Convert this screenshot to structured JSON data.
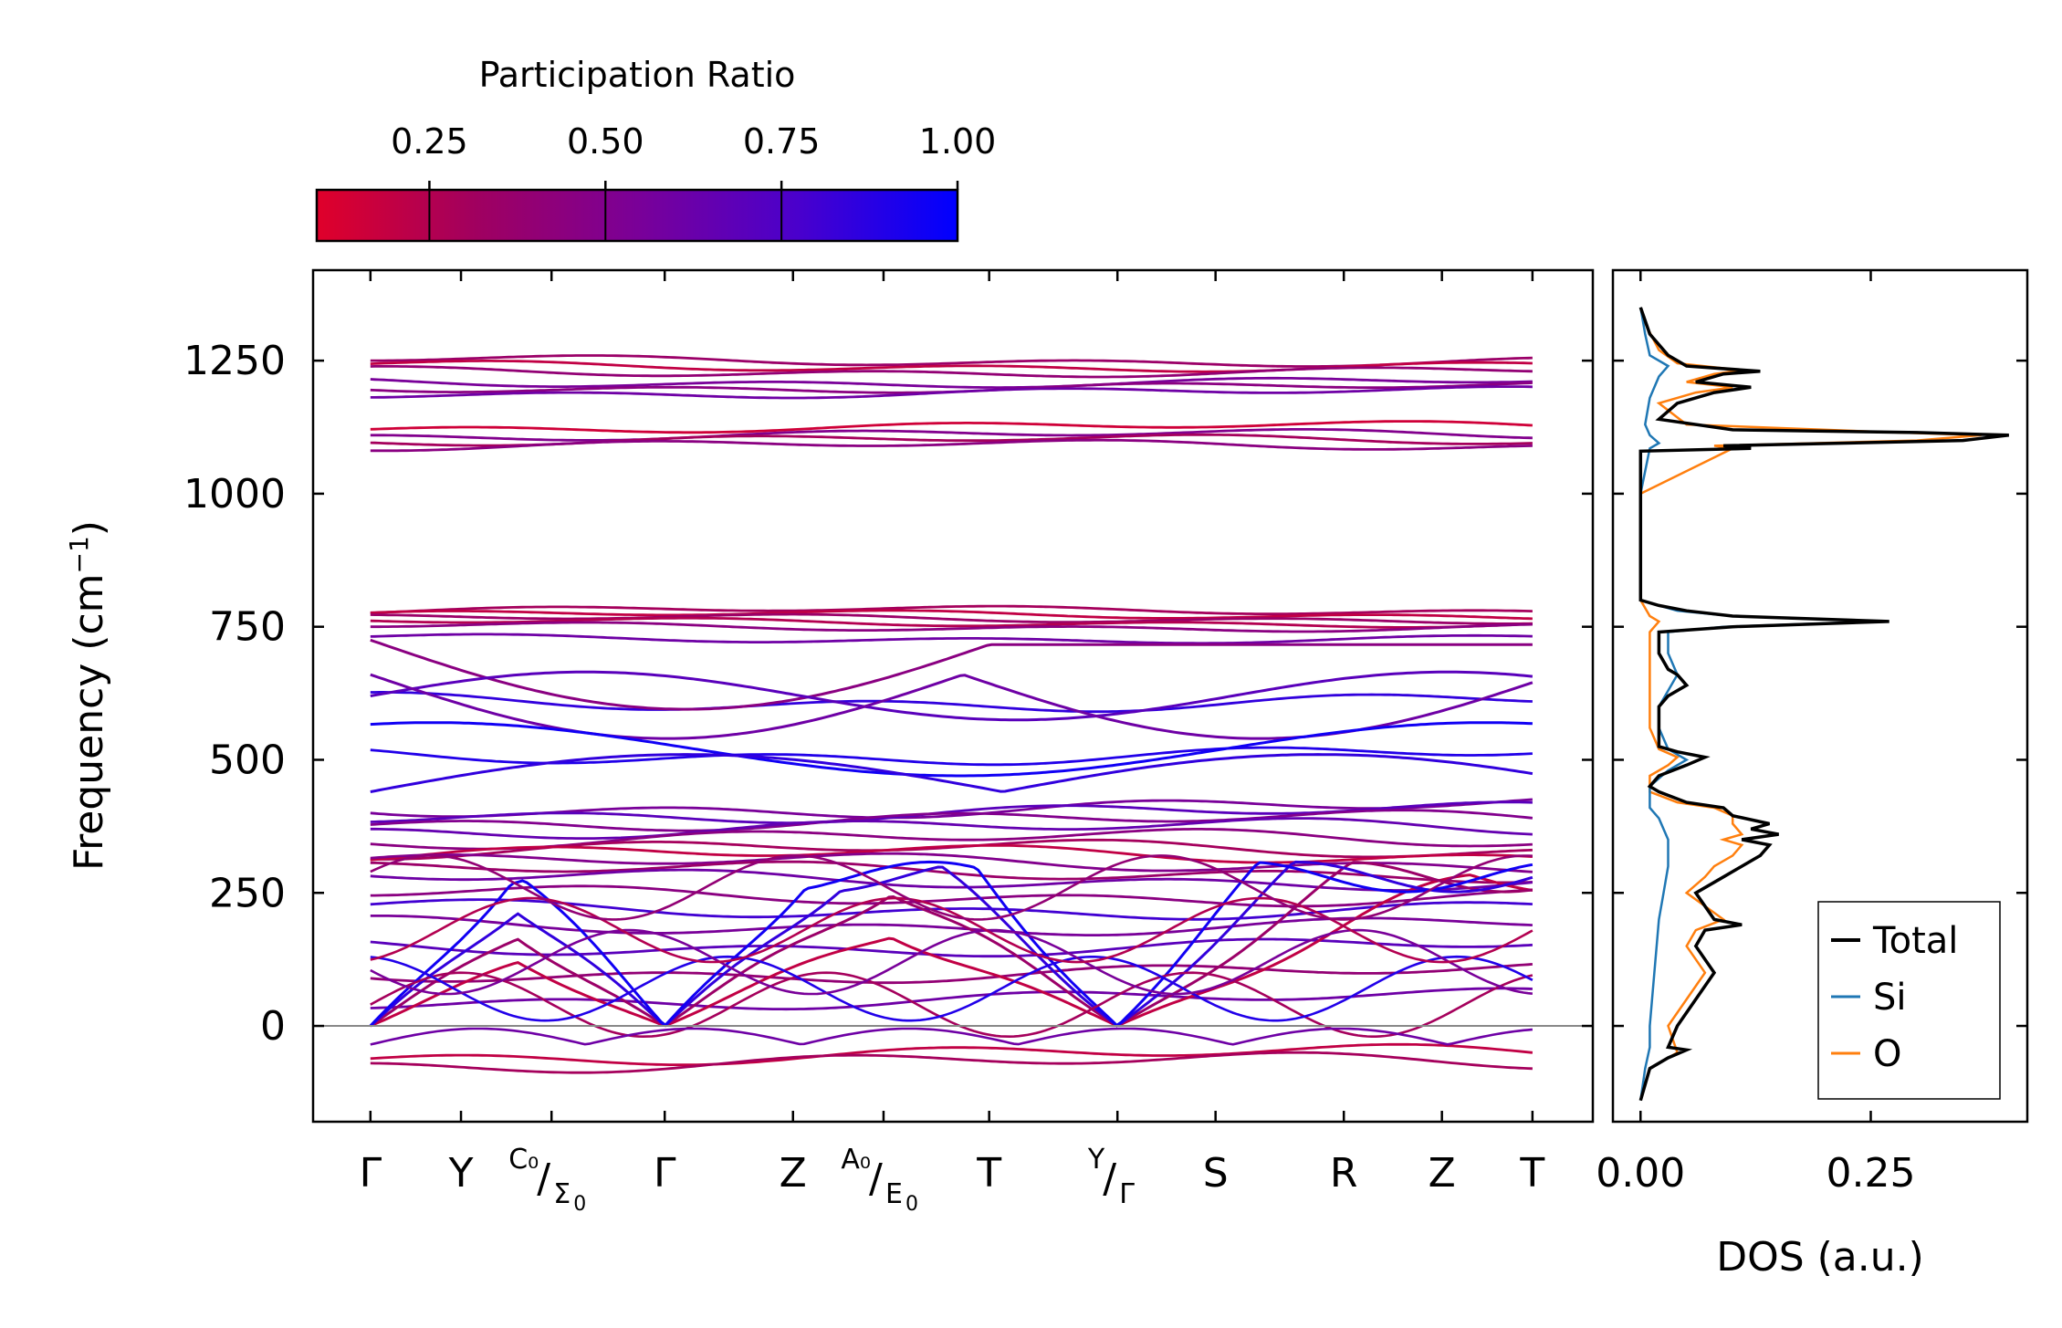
{
  "chart_data": [
    {
      "type": "line",
      "title": "",
      "xlabel": "",
      "ylabel": "Frequency (cm⁻¹)",
      "ylabel_text": "Frequency (cm",
      "ylabel_sup": "−1",
      "ylabel_close": ")",
      "ylim": [
        -180,
        1420
      ],
      "yticks": [
        0,
        250,
        500,
        750,
        1000,
        1250
      ],
      "ytick_labels": [
        "0",
        "250",
        "500",
        "750",
        "1000",
        "1250"
      ],
      "k_path_labels": [
        {
          "main": "Γ"
        },
        {
          "main": "Y"
        },
        {
          "sup": "C₀",
          "sub": "Σ",
          "sub_idx": "0"
        },
        {
          "main": "Γ"
        },
        {
          "main": "Z"
        },
        {
          "sup": "A₀",
          "sub": "E",
          "sub_idx": "0"
        },
        {
          "main": "T"
        },
        {
          "sup": "Y",
          "sub": "Γ",
          "sub_idx": ""
        },
        {
          "main": "S"
        },
        {
          "main": "R"
        },
        {
          "main": "Z"
        },
        {
          "main": "T"
        }
      ],
      "k_positions": [
        0,
        0.6,
        1.2,
        1.95,
        2.8,
        3.4,
        4.1,
        4.95,
        5.6,
        6.45,
        7.1,
        7.7
      ],
      "k_range": [
        -0.38,
        8.1
      ],
      "colorbar": {
        "label": "Participation Ratio",
        "range": [
          0.09,
          1.0
        ],
        "ticks": [
          0.25,
          0.5,
          0.75,
          1.0
        ],
        "tick_labels": [
          "0.25",
          "0.50",
          "0.75",
          "1.00"
        ],
        "colors": [
          "#e0002a",
          "#a00060",
          "#7a0098",
          "#4a00cc",
          "#0000ff"
        ]
      },
      "flat_bands": [
        {
          "f": 1250,
          "pr": 0.35
        },
        {
          "f": 1240,
          "pr": 0.2
        },
        {
          "f": 1230,
          "pr": 0.4
        },
        {
          "f": 1210,
          "pr": 0.55
        },
        {
          "f": 1200,
          "pr": 0.45
        },
        {
          "f": 1190,
          "pr": 0.6
        },
        {
          "f": 1125,
          "pr": 0.15
        },
        {
          "f": 1110,
          "pr": 0.5
        },
        {
          "f": 1100,
          "pr": 0.3
        },
        {
          "f": 1090,
          "pr": 0.45
        },
        {
          "f": 780,
          "pr": 0.3
        },
        {
          "f": 772,
          "pr": 0.2
        },
        {
          "f": 765,
          "pr": 0.35
        },
        {
          "f": 758,
          "pr": 0.25
        },
        {
          "f": 750,
          "pr": 0.45
        },
        {
          "f": 728,
          "pr": 0.6
        },
        {
          "f": 610,
          "pr": 0.85
        },
        {
          "f": 510,
          "pr": 0.9
        },
        {
          "f": 410,
          "pr": 0.55
        },
        {
          "f": 400,
          "pr": 0.7
        },
        {
          "f": 385,
          "pr": 0.5
        },
        {
          "f": 370,
          "pr": 0.65
        },
        {
          "f": 350,
          "pr": 0.45
        },
        {
          "f": 330,
          "pr": 0.3
        },
        {
          "f": 320,
          "pr": 0.2
        },
        {
          "f": 305,
          "pr": 0.5
        },
        {
          "f": 290,
          "pr": 0.35
        },
        {
          "f": 275,
          "pr": 0.6
        },
        {
          "f": 245,
          "pr": 0.45
        },
        {
          "f": 220,
          "pr": 0.8
        },
        {
          "f": 190,
          "pr": 0.55
        },
        {
          "f": 150,
          "pr": 0.7
        },
        {
          "f": 100,
          "pr": 0.4
        },
        {
          "f": 50,
          "pr": 0.6
        },
        {
          "f": -55,
          "pr": 0.2
        },
        {
          "f": -70,
          "pr": 0.3
        }
      ],
      "reference_line": {
        "y": 0,
        "color": "#888888"
      }
    },
    {
      "type": "line",
      "title": "",
      "xlabel": "DOS (a.u.)",
      "ylabel": "",
      "xlim": [
        -0.03,
        0.42
      ],
      "xticks": [
        0.0,
        0.25
      ],
      "xtick_labels": [
        "0.00",
        "0.25"
      ],
      "ylim": [
        -180,
        1420
      ],
      "legend": {
        "placement": "bottom-right",
        "entries": [
          "Total",
          "Si",
          "O"
        ]
      },
      "series": [
        {
          "name": "Total",
          "color": "#000000",
          "freq": [
            -140,
            -80,
            -60,
            -45,
            -40,
            0,
            50,
            100,
            150,
            180,
            190,
            200,
            250,
            280,
            300,
            320,
            340,
            350,
            360,
            370,
            380,
            395,
            410,
            420,
            440,
            450,
            470,
            490,
            505,
            515,
            525,
            540,
            560,
            600,
            620,
            640,
            660,
            670,
            700,
            740,
            750,
            760,
            770,
            780,
            790,
            800,
            900,
            1000,
            1080,
            1085,
            1090,
            1100,
            1110,
            1115,
            1120,
            1140,
            1170,
            1190,
            1200,
            1210,
            1225,
            1230,
            1240,
            1260,
            1300,
            1350
          ],
          "dos": [
            0.0,
            0.01,
            0.03,
            0.05,
            0.03,
            0.04,
            0.06,
            0.08,
            0.06,
            0.07,
            0.11,
            0.08,
            0.06,
            0.09,
            0.11,
            0.13,
            0.14,
            0.11,
            0.15,
            0.12,
            0.14,
            0.1,
            0.09,
            0.05,
            0.02,
            0.01,
            0.02,
            0.05,
            0.07,
            0.04,
            0.02,
            0.02,
            0.02,
            0.02,
            0.03,
            0.05,
            0.04,
            0.03,
            0.02,
            0.02,
            0.1,
            0.27,
            0.1,
            0.05,
            0.02,
            0.0,
            0.0,
            0.0,
            0.0,
            0.12,
            0.09,
            0.35,
            0.4,
            0.3,
            0.1,
            0.02,
            0.04,
            0.08,
            0.12,
            0.06,
            0.09,
            0.13,
            0.05,
            0.03,
            0.01,
            0.0
          ]
        },
        {
          "name": "Si",
          "color": "#1f77b4",
          "freq": [
            -140,
            -80,
            -40,
            0,
            100,
            200,
            250,
            300,
            350,
            390,
            410,
            420,
            450,
            480,
            500,
            520,
            560,
            600,
            660,
            700,
            740,
            750,
            760,
            770,
            780,
            790,
            800,
            900,
            1000,
            1085,
            1095,
            1110,
            1130,
            1180,
            1220,
            1240,
            1260,
            1300,
            1350
          ],
          "dos": [
            0.0,
            0.005,
            0.01,
            0.01,
            0.015,
            0.02,
            0.025,
            0.03,
            0.03,
            0.02,
            0.01,
            0.01,
            0.01,
            0.03,
            0.05,
            0.03,
            0.02,
            0.02,
            0.04,
            0.03,
            0.03,
            0.09,
            0.26,
            0.1,
            0.04,
            0.02,
            0.0,
            0.0,
            0.0,
            0.01,
            0.02,
            0.01,
            0.005,
            0.01,
            0.02,
            0.03,
            0.01,
            0.005,
            0.0
          ]
        },
        {
          "name": "O",
          "color": "#ff7f0e",
          "freq": [
            -140,
            -80,
            -50,
            0,
            50,
            100,
            150,
            180,
            200,
            250,
            280,
            300,
            320,
            340,
            350,
            360,
            380,
            395,
            410,
            420,
            440,
            470,
            490,
            505,
            520,
            560,
            600,
            650,
            700,
            740,
            750,
            760,
            770,
            800,
            900,
            1000,
            1085,
            1090,
            1100,
            1110,
            1115,
            1130,
            1170,
            1190,
            1200,
            1210,
            1225,
            1232,
            1245,
            1270,
            1320,
            1350
          ],
          "dos": [
            0.0,
            0.01,
            0.04,
            0.03,
            0.05,
            0.07,
            0.05,
            0.06,
            0.09,
            0.05,
            0.07,
            0.08,
            0.1,
            0.11,
            0.09,
            0.11,
            0.1,
            0.1,
            0.08,
            0.04,
            0.01,
            0.01,
            0.03,
            0.04,
            0.02,
            0.01,
            0.01,
            0.01,
            0.01,
            0.01,
            0.015,
            0.02,
            0.01,
            0.0,
            0.0,
            0.0,
            0.1,
            0.08,
            0.3,
            0.37,
            0.28,
            0.05,
            0.02,
            0.06,
            0.1,
            0.05,
            0.08,
            0.11,
            0.04,
            0.02,
            0.005,
            0.0
          ]
        }
      ]
    }
  ]
}
